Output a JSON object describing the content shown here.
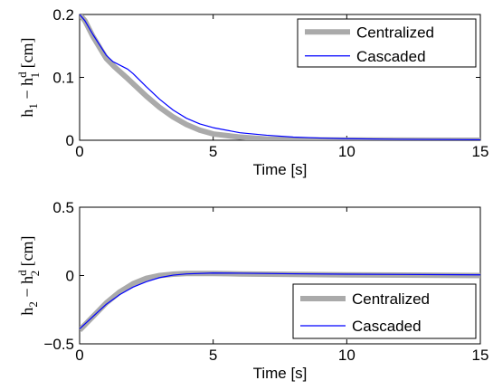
{
  "chart_data": [
    {
      "type": "line",
      "xlabel": "Time [s]",
      "ylabel": {
        "main": "h",
        "sub1": "1",
        "dash": " − h",
        "sup": "d",
        "sub2": "1",
        "unit": " [cm]"
      },
      "xlim": [
        0,
        15
      ],
      "ylim": [
        0,
        0.2
      ],
      "xticks": [
        "0",
        "5",
        "10",
        "15"
      ],
      "yticks": [
        "0",
        "0.1",
        "0.2"
      ],
      "grid": false,
      "legend_position": "top-right",
      "series": [
        {
          "name": "Centralized",
          "color": "#aaaaaa",
          "x": [
            0,
            0.2,
            0.5,
            1.0,
            1.3,
            1.8,
            2.5,
            3.0,
            3.5,
            4.0,
            4.5,
            5.0,
            6.0,
            7.0,
            8.0,
            9.0,
            10.0,
            12.0,
            15.0
          ],
          "y": [
            0.2,
            0.19,
            0.165,
            0.13,
            0.117,
            0.098,
            0.07,
            0.052,
            0.037,
            0.025,
            0.016,
            0.01,
            0.005,
            0.002,
            0.001,
            0.0005,
            0.0003,
            0.0001,
            0.0
          ]
        },
        {
          "name": "Cascaded",
          "color": "#0000ff",
          "x": [
            0,
            0.2,
            0.5,
            1.0,
            1.25,
            1.8,
            2.0,
            2.5,
            3.0,
            3.5,
            4.0,
            4.5,
            5.0,
            6.0,
            7.0,
            8.0,
            9.0,
            10.0,
            12.0,
            15.0
          ],
          "y": [
            0.2,
            0.19,
            0.168,
            0.135,
            0.125,
            0.113,
            0.106,
            0.085,
            0.065,
            0.048,
            0.035,
            0.026,
            0.02,
            0.012,
            0.008,
            0.005,
            0.0035,
            0.0025,
            0.0015,
            0.0008
          ]
        }
      ]
    },
    {
      "type": "line",
      "xlabel": "Time [s]",
      "ylabel": {
        "main": "h",
        "sub1": "2",
        "dash": " − h",
        "sup": "d",
        "sub2": "2",
        "unit": " [cm]"
      },
      "xlim": [
        0,
        15
      ],
      "ylim": [
        -0.5,
        0.5
      ],
      "xticks": [
        "0",
        "5",
        "10",
        "15"
      ],
      "yticks": [
        "−0.5",
        "0",
        "0.5"
      ],
      "grid": false,
      "legend_position": "bottom-right",
      "series": [
        {
          "name": "Centralized",
          "color": "#aaaaaa",
          "x": [
            0,
            0.5,
            1.0,
            1.5,
            2.0,
            2.5,
            3.0,
            3.5,
            4.0,
            5.0,
            6.0,
            8.0,
            10.0,
            12.0,
            15.0
          ],
          "y": [
            -0.4,
            -0.3,
            -0.2,
            -0.12,
            -0.06,
            -0.02,
            0.0,
            0.01,
            0.015,
            0.015,
            0.012,
            0.008,
            0.005,
            0.003,
            0.0
          ]
        },
        {
          "name": "Cascaded",
          "color": "#0000ff",
          "x": [
            0,
            0.5,
            1.0,
            1.5,
            2.0,
            2.5,
            3.0,
            3.5,
            4.0,
            5.0,
            6.0,
            8.0,
            10.0,
            12.0,
            15.0
          ],
          "y": [
            -0.39,
            -0.3,
            -0.21,
            -0.14,
            -0.085,
            -0.045,
            -0.015,
            0.003,
            0.012,
            0.018,
            0.017,
            0.013,
            0.01,
            0.008,
            0.005
          ]
        }
      ]
    }
  ]
}
